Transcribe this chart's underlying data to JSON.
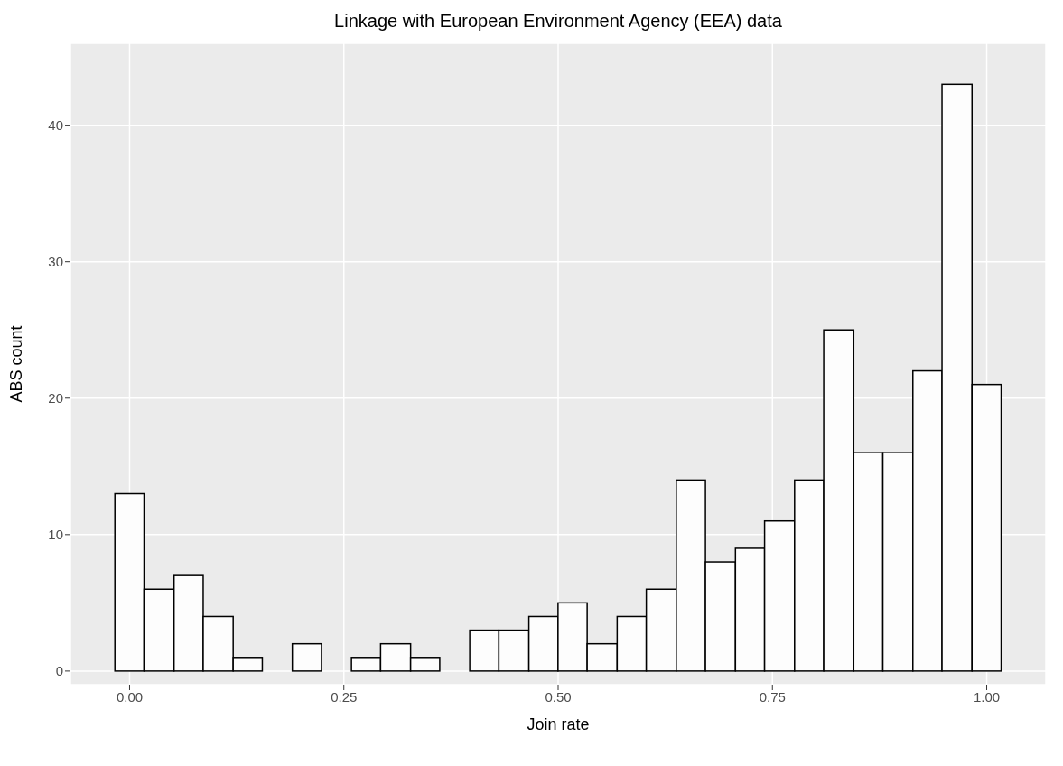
{
  "chart_data": {
    "type": "histogram",
    "title": "Linkage with European Environment Agency (EEA) data",
    "xlabel": "Join rate",
    "ylabel": "ABS count",
    "bins": [
      -0.017,
      0.017,
      0.052,
      0.086,
      0.121,
      0.155,
      0.19,
      0.224,
      0.259,
      0.293,
      0.328,
      0.362,
      0.397,
      0.431,
      0.466,
      0.5,
      0.534,
      0.569,
      0.603,
      0.638,
      0.672,
      0.707,
      0.741,
      0.776,
      0.81,
      0.845,
      0.879,
      0.914,
      0.948,
      0.983,
      1.017
    ],
    "values": [
      13,
      6,
      7,
      4,
      1,
      0,
      2,
      0,
      1,
      2,
      1,
      0,
      3,
      3,
      4,
      5,
      2,
      4,
      6,
      14,
      8,
      9,
      11,
      14,
      25,
      16,
      16,
      22,
      43,
      21
    ],
    "color": "#fdfdfd",
    "xlim": [
      -0.069,
      1.069
    ],
    "xticks": [
      {
        "value": 0,
        "label": "0.00"
      },
      {
        "value": 0.25,
        "label": "0.25"
      },
      {
        "value": 0.5,
        "label": "0.50"
      },
      {
        "value": 0.75,
        "label": "0.75"
      },
      {
        "value": 1,
        "label": "1.00"
      }
    ],
    "ylim": [
      -1,
      46
    ],
    "yticks": [
      0,
      10,
      20,
      30,
      40
    ],
    "grid": true
  }
}
